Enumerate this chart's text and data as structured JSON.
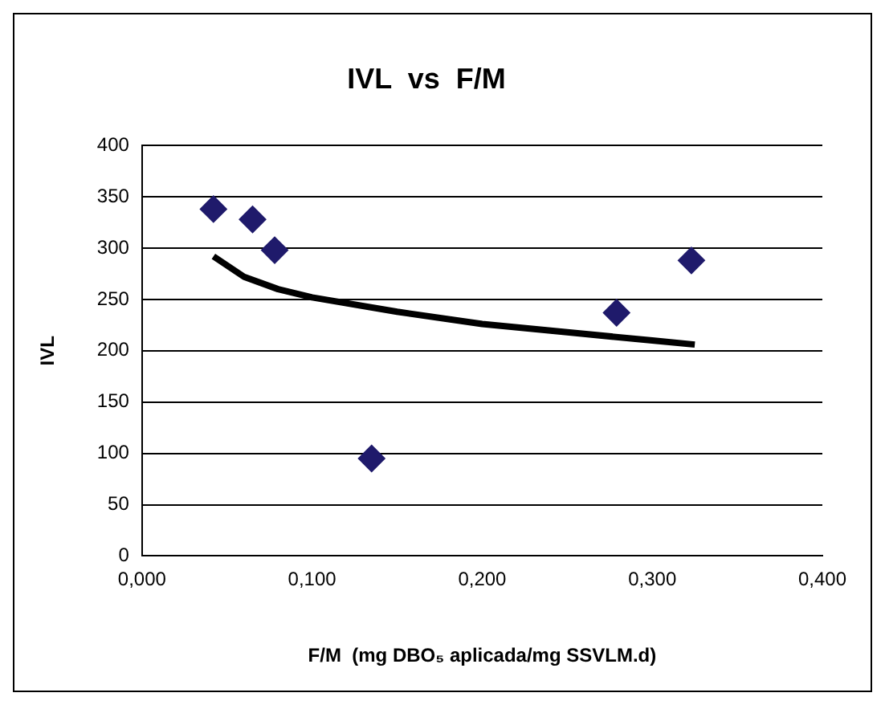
{
  "chart_data": {
    "type": "scatter",
    "title": "IVL  vs  F/M",
    "xlabel": "F/M  (mg DBO₅ aplicada/mg SSVLM.d)",
    "ylabel": "IVL",
    "series": [
      {
        "marker": "diamond",
        "color": "#1f1a6b",
        "x": [
          0.042,
          0.065,
          0.078,
          0.135,
          0.279,
          0.323
        ],
        "values": [
          338,
          328,
          298,
          95,
          237,
          288
        ]
      },
      {
        "type": "line",
        "marker": "none",
        "color": "#000000",
        "x": [
          0.042,
          0.06,
          0.08,
          0.1,
          0.15,
          0.2,
          0.25,
          0.3,
          0.325
        ],
        "values": [
          292,
          272,
          260,
          252,
          238,
          226,
          218,
          210,
          206
        ]
      }
    ],
    "grid": "y",
    "legend": false,
    "xlim": [
      0,
      0.4
    ],
    "xticks": [
      {
        "value": 0,
        "label": "0,000"
      },
      {
        "value": 0.1,
        "label": "0,100"
      },
      {
        "value": 0.2,
        "label": "0,200"
      },
      {
        "value": 0.3,
        "label": "0,300"
      },
      {
        "value": 0.4,
        "label": "0,400"
      }
    ],
    "ylim": [
      0,
      400
    ],
    "yticks": [
      0,
      50,
      100,
      150,
      200,
      250,
      300,
      350,
      400
    ]
  }
}
